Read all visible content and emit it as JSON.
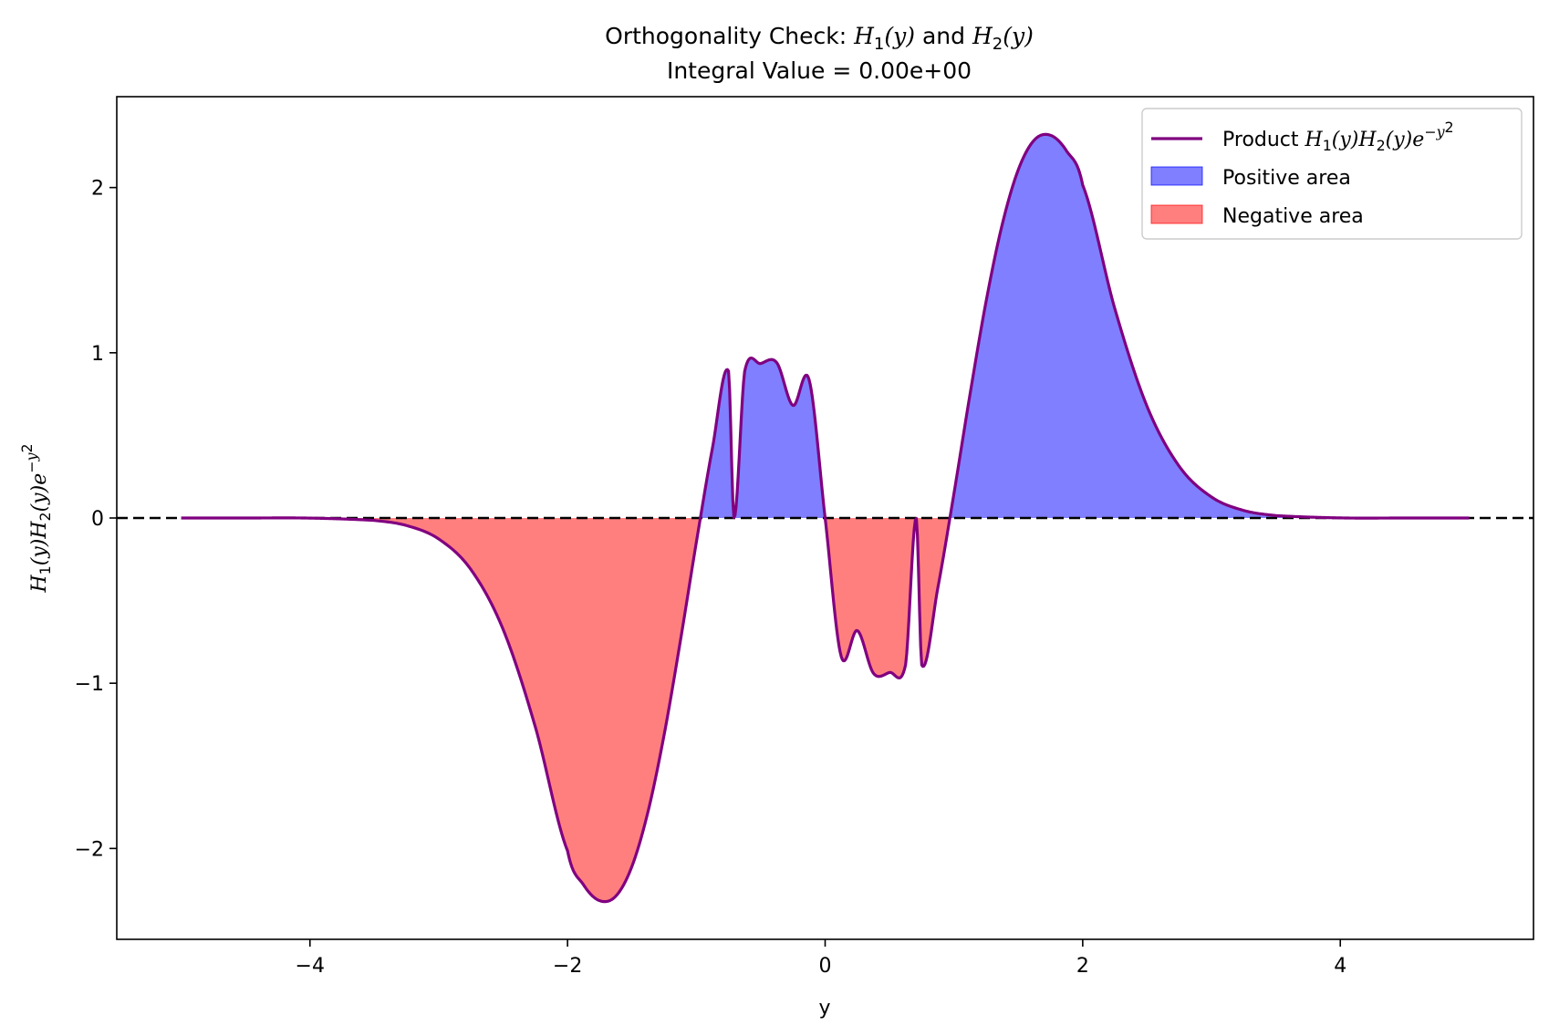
{
  "chart_data": {
    "type": "area",
    "title": {
      "prefix": "Orthogonality Check: ",
      "f1_base": "H",
      "f1_sub": "1",
      "f1_arg": "(y)",
      "conj": " and ",
      "f2_base": "H",
      "f2_sub": "2",
      "f2_arg": "(y)"
    },
    "subtitle": "Integral Value = 0.00e+00",
    "xlabel": "y",
    "ylabel": {
      "h1_base": "H",
      "h1_sub": "1",
      "h1_arg": "(y)",
      "h2_base": "H",
      "h2_sub": "2",
      "h2_arg": "(y)",
      "exp_base": "e",
      "exp_sup": "−y",
      "exp_sup2": "2"
    },
    "xlim": [
      -5.5,
      5.5
    ],
    "ylim": [
      -2.55,
      2.55
    ],
    "x_ticks": [
      {
        "value": -4,
        "label": "−4"
      },
      {
        "value": -2,
        "label": "−2"
      },
      {
        "value": 0,
        "label": "0"
      },
      {
        "value": 2,
        "label": "2"
      },
      {
        "value": 4,
        "label": "4"
      }
    ],
    "y_ticks": [
      {
        "value": -2,
        "label": "−2"
      },
      {
        "value": -1,
        "label": "−1"
      },
      {
        "value": 0,
        "label": "0"
      },
      {
        "value": 1,
        "label": "1"
      },
      {
        "value": 2,
        "label": "2"
      }
    ],
    "x_range": [
      -5,
      5
    ],
    "x": [
      -5.0,
      -4.5,
      -4.0,
      -3.5,
      -3.25,
      -3.0,
      -2.75,
      -2.5,
      -2.25,
      -2.0,
      -1.875,
      -1.75,
      -1.625,
      -1.5,
      -1.375,
      -1.25,
      -1.125,
      -1.0,
      -0.875,
      -0.75,
      -0.707,
      -0.625,
      -0.5,
      -0.375,
      -0.25,
      -0.125,
      0.0,
      0.125,
      0.25,
      0.375,
      0.5,
      0.625,
      0.707,
      0.75,
      0.875,
      1.0,
      1.125,
      1.25,
      1.375,
      1.5,
      1.625,
      1.75,
      1.875,
      2.0,
      2.25,
      2.5,
      2.75,
      3.0,
      3.25,
      3.5,
      4.0,
      4.5,
      5.0
    ],
    "y": [
      0.0,
      0.0,
      -0.0006,
      -0.0146,
      -0.0456,
      -0.1272,
      -0.3124,
      -0.6748,
      -1.2652,
      -2.0147,
      -2.2211,
      -2.3163,
      -2.2884,
      -2.1084,
      -1.7765,
      -1.3119,
      -0.7489,
      -0.1472,
      0.4234,
      0.8896,
      0.0,
      0.8863,
      0.9349,
      0.9396,
      0.6812,
      0.8385,
      0.0,
      -0.8385,
      -0.6812,
      -0.9396,
      -0.9349,
      -0.8863,
      0.0,
      -0.8896,
      -0.4234,
      0.1472,
      0.7489,
      1.3119,
      1.7765,
      2.1084,
      2.2884,
      2.3163,
      2.2211,
      2.0147,
      1.2652,
      0.6748,
      0.3124,
      0.1272,
      0.0456,
      0.0146,
      0.0006,
      0.0,
      0.0
    ],
    "series": [
      {
        "name_prefix": "Product ",
        "type": "line",
        "color": "#800080"
      }
    ],
    "fills": [
      {
        "name": "Positive area",
        "where": "y >= 0",
        "color": "#0000ff",
        "alpha": 0.5
      },
      {
        "name": "Negative area",
        "where": "y < 0",
        "color": "#ff0000",
        "alpha": 0.5
      }
    ],
    "reference_line": {
      "y": 0,
      "style": "dashed",
      "color": "#000000"
    },
    "legend_position": "top-right",
    "grid": false
  }
}
